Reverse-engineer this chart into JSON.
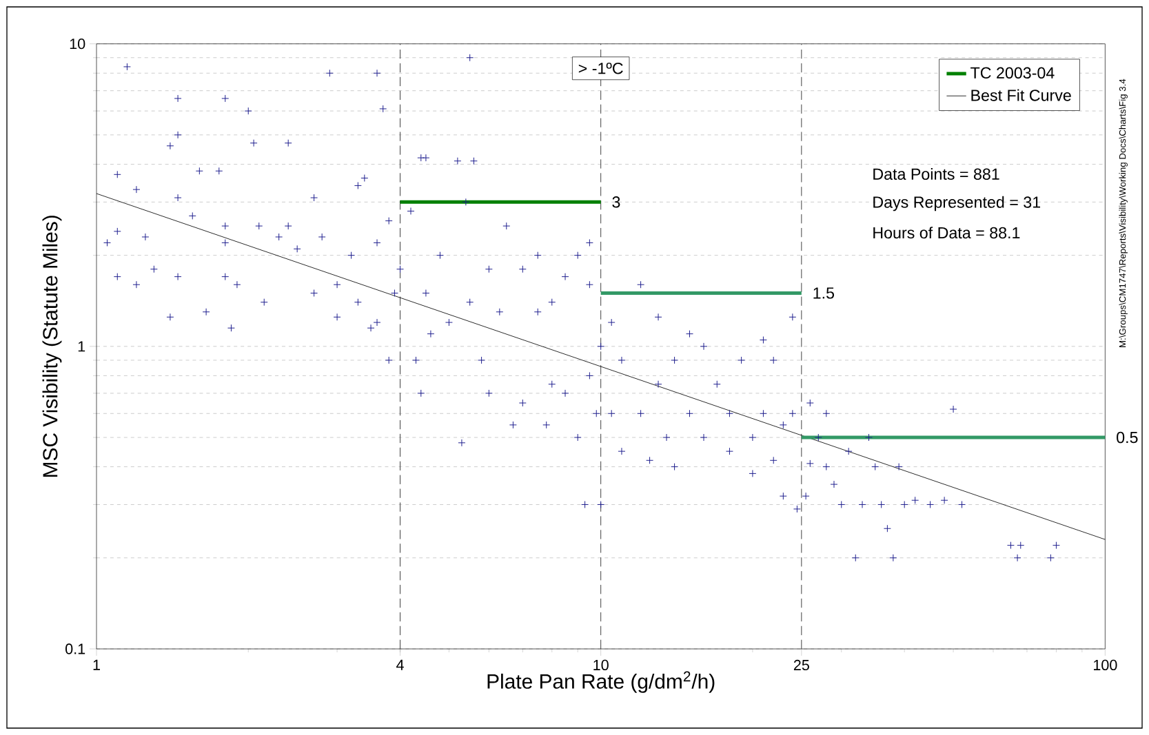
{
  "chart_data": {
    "type": "scatter",
    "xlabel": "Plate Pan Rate (g/dm$^{2}$/h)",
    "ylabel": "MSC Visibility (Statute Miles)",
    "log": "xy",
    "xlim": [
      1,
      100
    ],
    "ylim": [
      0.1,
      10
    ],
    "xticks": [
      1,
      4,
      10,
      25,
      100
    ],
    "yticks": [
      0.1,
      1,
      10
    ],
    "grid": "y",
    "legend": "top right",
    "series": [
      {
        "marker": "cross",
        "color": "#1f1f8f",
        "x": [
          1.05,
          1.1,
          1.1,
          1.1,
          1.15,
          1.2,
          1.2,
          1.25,
          1.3,
          1.4,
          1.45,
          1.45,
          1.45,
          1.45,
          1.4,
          1.55,
          1.6,
          1.65,
          1.75,
          1.8,
          1.8,
          1.8,
          1.8,
          1.85,
          1.9,
          2.0,
          2.05,
          2.1,
          2.15,
          2.3,
          2.4,
          2.4,
          2.5,
          2.7,
          2.7,
          2.8,
          3.0,
          3.0,
          3.2,
          2.9,
          3.3,
          3.3,
          3.4,
          3.5,
          3.6,
          3.6,
          3.8,
          3.8,
          3.6,
          3.9,
          3.7,
          4.0,
          4.2,
          4.3,
          4.4,
          4.4,
          4.5,
          4.5,
          4.6,
          4.8,
          5.0,
          5.2,
          5.3,
          5.4,
          5.5,
          5.5,
          5.6,
          5.8,
          6.0,
          6.0,
          6.3,
          6.5,
          6.7,
          7.0,
          7.0,
          7.5,
          7.5,
          7.8,
          8.0,
          8.0,
          8.5,
          8.5,
          9.0,
          9.0,
          9.3,
          9.5,
          9.5,
          9.5,
          9.8,
          10,
          10,
          10.5,
          10.5,
          11,
          11,
          12,
          12,
          12.5,
          13,
          13,
          13.5,
          14,
          14,
          15,
          15,
          16,
          16,
          17,
          18,
          18,
          19,
          20,
          20,
          21,
          21,
          22,
          22,
          23,
          23,
          24,
          24,
          24.5,
          25.5,
          26,
          26,
          27,
          28,
          28,
          29,
          30,
          31,
          32,
          33,
          34,
          35,
          36,
          37,
          38,
          39,
          40,
          42,
          45,
          48,
          50,
          52,
          65,
          67,
          68,
          78,
          80
        ],
        "values": [
          2.2,
          3.7,
          2.4,
          1.7,
          8.4,
          3.3,
          1.6,
          2.3,
          1.8,
          4.6,
          5.0,
          6.6,
          3.1,
          1.7,
          1.25,
          2.7,
          3.8,
          1.3,
          3.8,
          6.6,
          2.5,
          2.2,
          1.7,
          1.15,
          1.6,
          6.0,
          4.7,
          2.5,
          1.4,
          2.3,
          4.7,
          2.5,
          2.1,
          3.1,
          1.5,
          2.3,
          1.6,
          1.25,
          2.0,
          8.0,
          3.4,
          1.4,
          3.6,
          1.15,
          2.2,
          1.2,
          2.6,
          0.9,
          8.0,
          1.5,
          6.1,
          1.8,
          2.8,
          0.9,
          4.2,
          0.7,
          4.2,
          1.5,
          1.1,
          2.0,
          1.2,
          4.1,
          0.48,
          3.0,
          9.0,
          1.4,
          4.1,
          0.9,
          1.8,
          0.7,
          1.3,
          2.5,
          0.55,
          1.8,
          0.65,
          2.0,
          1.3,
          0.55,
          1.4,
          0.75,
          1.7,
          0.7,
          2.0,
          0.5,
          0.3,
          2.2,
          1.6,
          0.8,
          0.6,
          0.3,
          1.0,
          0.6,
          1.2,
          0.45,
          0.9,
          1.6,
          0.6,
          0.42,
          1.25,
          0.75,
          0.5,
          0.9,
          0.4,
          1.1,
          0.6,
          0.5,
          1.0,
          0.75,
          0.45,
          0.6,
          0.9,
          0.5,
          0.38,
          1.05,
          0.6,
          0.42,
          0.9,
          0.55,
          0.32,
          0.6,
          1.25,
          0.29,
          0.32,
          0.65,
          0.41,
          0.5,
          0.6,
          0.4,
          0.35,
          0.3,
          0.45,
          0.2,
          0.3,
          0.5,
          0.4,
          0.3,
          0.25,
          0.2,
          0.4,
          0.3,
          0.31,
          0.3,
          0.31,
          0.62,
          0.3,
          0.22,
          0.2,
          0.22,
          0.2,
          0.22
        ]
      },
      {
        "type": "line",
        "name": "Best Fit Curve",
        "color": "#000000",
        "x": [
          1,
          100
        ],
        "values": [
          3.2,
          0.23
        ]
      },
      {
        "type": "line",
        "name": "TC 2003-04",
        "color": "#008000",
        "x": [
          4,
          10
        ],
        "values": [
          3,
          3
        ]
      },
      {
        "type": "line",
        "color": "#339966",
        "x": [
          10,
          25
        ],
        "values": [
          1.5,
          1.5
        ]
      },
      {
        "type": "line",
        "color": "#339966",
        "x": [
          25,
          100
        ],
        "values": [
          0.5,
          0.5
        ]
      }
    ],
    "ref_lines": [
      {
        "axis": "x",
        "value": 4,
        "color": "#404040",
        "line_style": "dashed"
      },
      {
        "axis": "x",
        "value": 10,
        "color": "#404040",
        "line_style": "dashed"
      },
      {
        "axis": "x",
        "value": 25,
        "color": "#404040",
        "line_style": "dashed"
      }
    ],
    "annotations": [
      "> -1ºC",
      "Data Points =  881",
      "Days Represented =  31",
      "Hours of Data =  88.1",
      "M:\\Groups\\CM1747\\Reports\\Visibility\\Working Docs\\Charts\\Fig  3.4",
      {
        "text": "3",
        "x": 10,
        "y": 3
      },
      {
        "text": "1.5",
        "x": 25,
        "y": 1.5
      },
      {
        "text": "0.5",
        "x": 100,
        "y": 0.5
      }
    ]
  }
}
